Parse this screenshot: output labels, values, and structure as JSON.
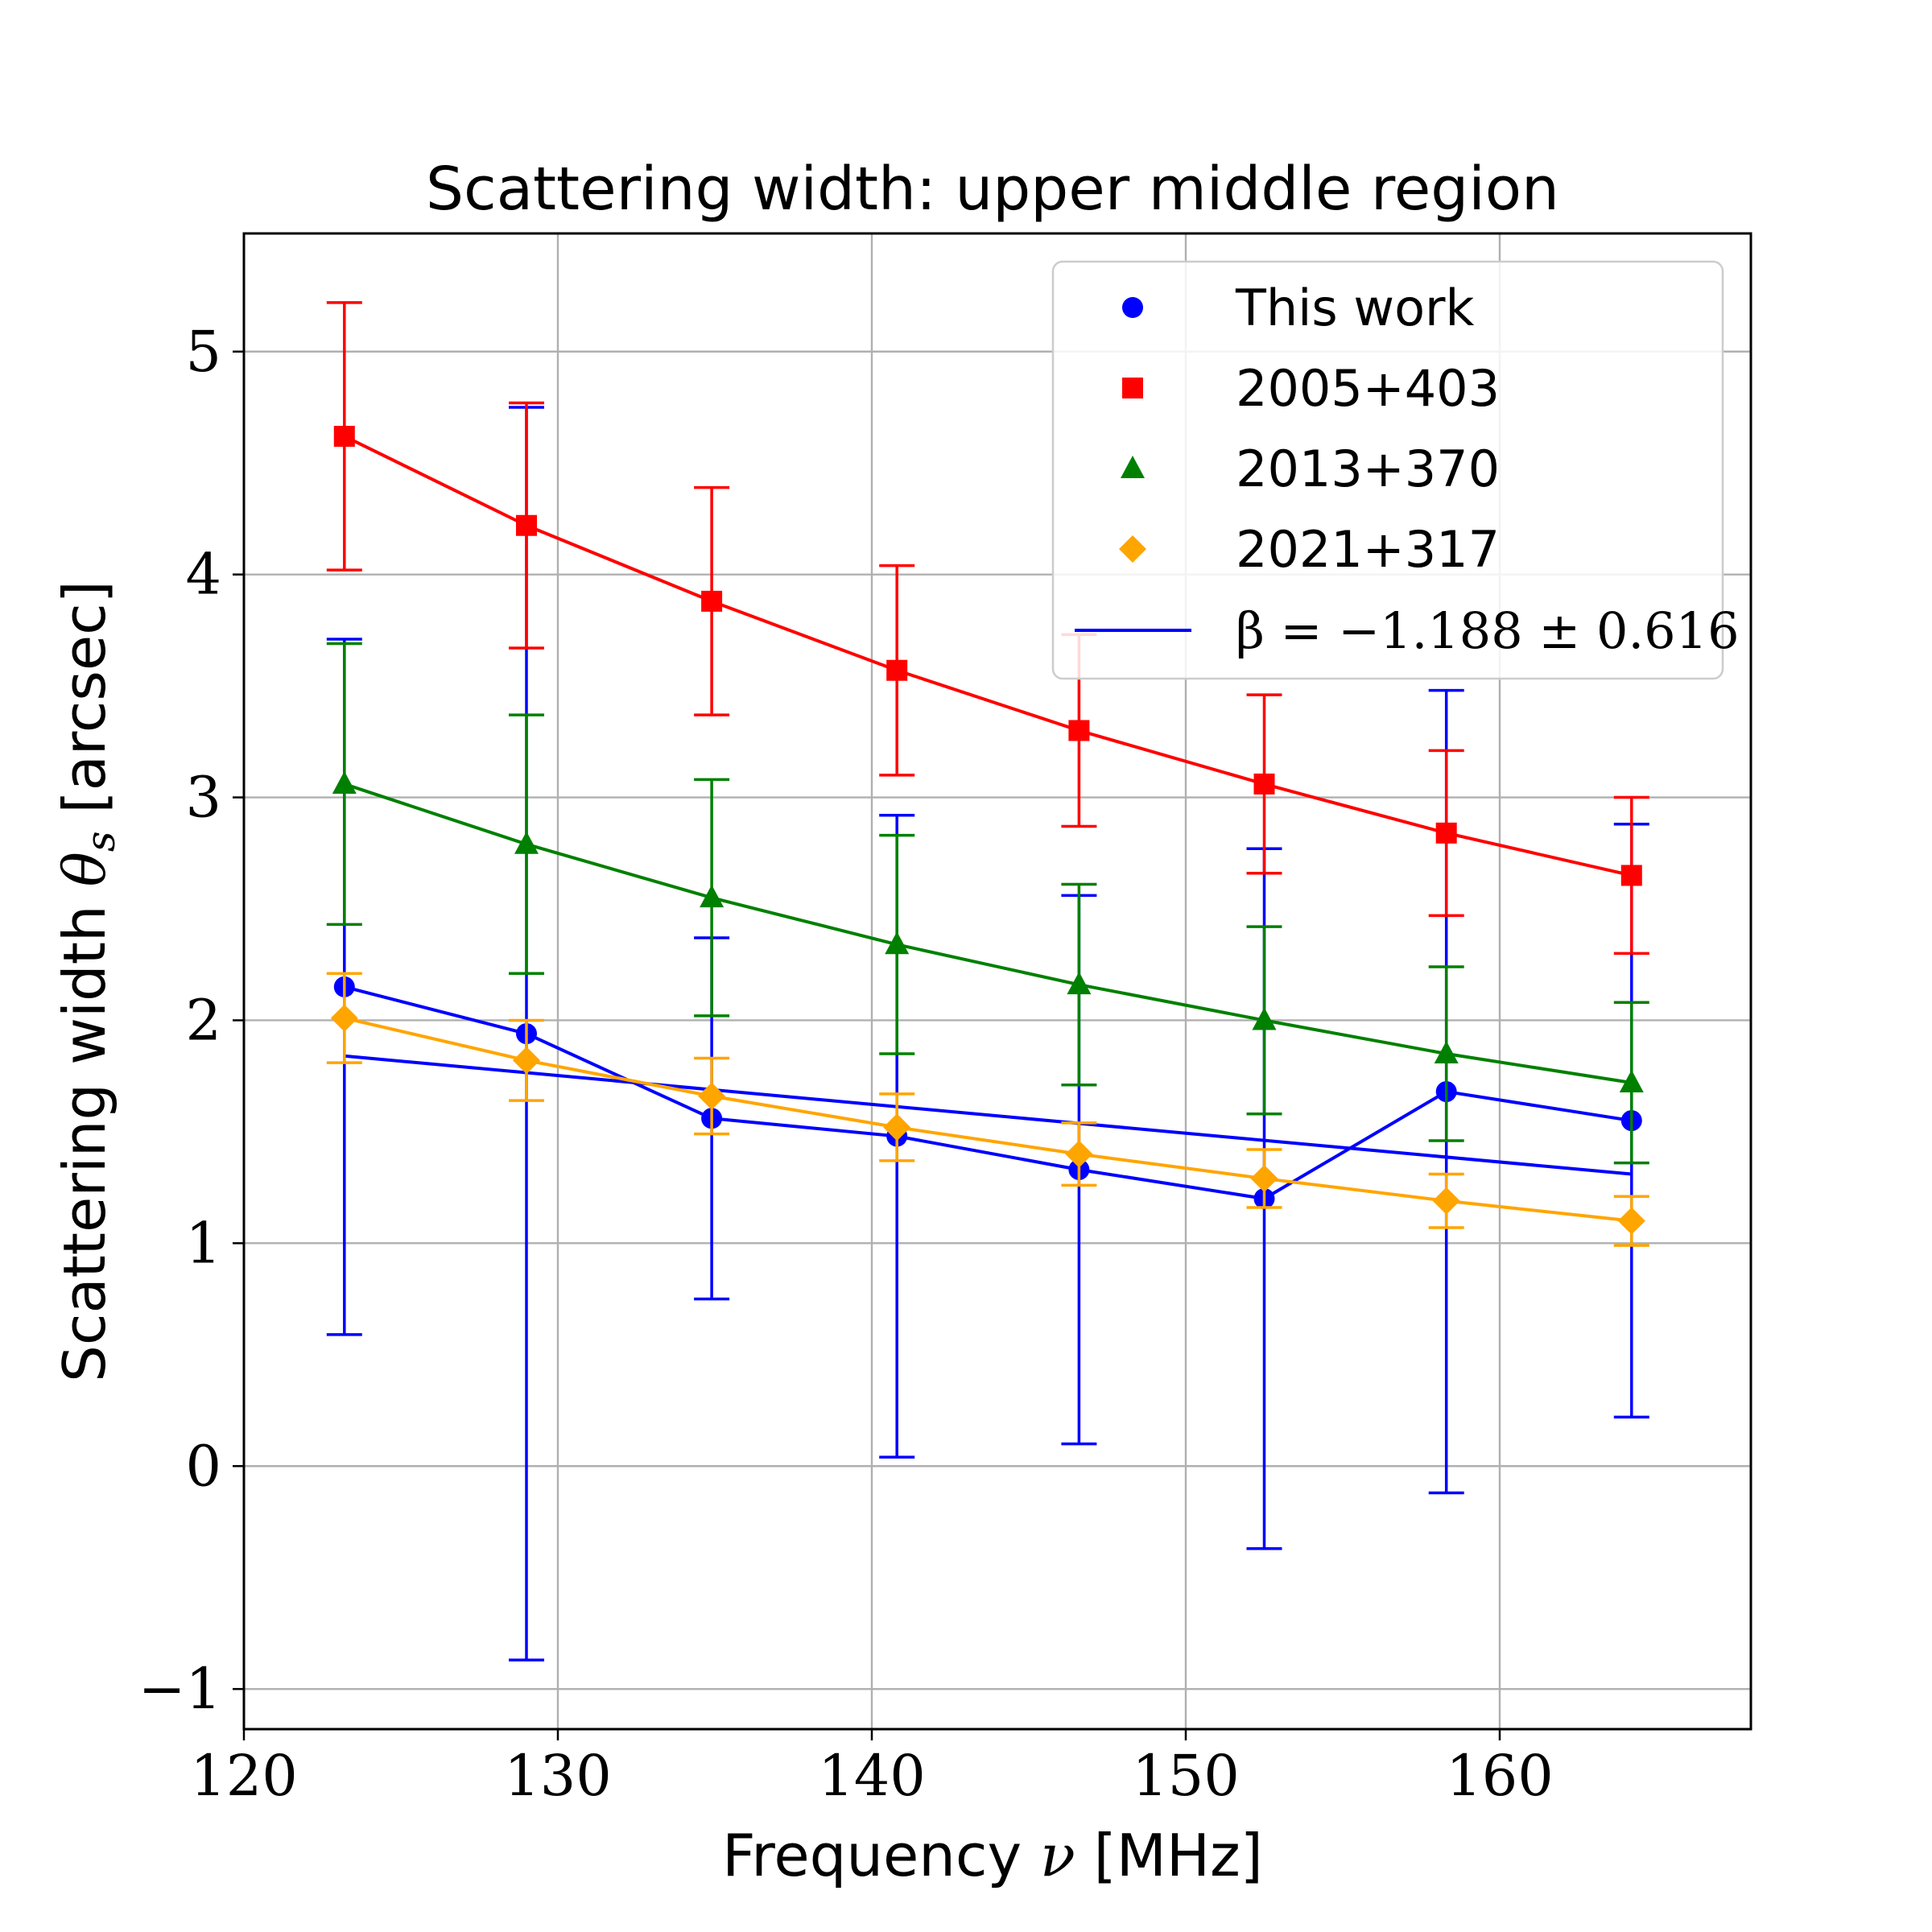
{
  "chart_data": {
    "type": "line",
    "title": "Scattering width: upper middle region",
    "xlabel_text": "Frequency",
    "xlabel_symbol": "ν",
    "xlabel_unit": "[MHz]",
    "ylabel_text": "Scattering width",
    "ylabel_symbol": "θ",
    "ylabel_subscript": "s",
    "ylabel_unit": "[arcsec]",
    "xlim": [
      120,
      168
    ],
    "ylim": [
      -1.18,
      5.53
    ],
    "xticks": [
      120,
      130,
      140,
      150,
      160
    ],
    "yticks": [
      -1,
      0,
      1,
      2,
      3,
      4,
      5
    ],
    "xtick_labels": [
      "120",
      "130",
      "140",
      "150",
      "160"
    ],
    "ytick_labels": [
      "−1",
      "0",
      "1",
      "2",
      "3",
      "4",
      "5"
    ],
    "grid": true,
    "legend_position": "top-right",
    "x": [
      123.2,
      129.0,
      134.9,
      140.8,
      146.6,
      152.5,
      158.3,
      164.2
    ],
    "series": [
      {
        "name": "This work",
        "marker": "circle",
        "color": "#0000ff",
        "values": [
          2.15,
          1.94,
          1.56,
          1.48,
          1.33,
          1.2,
          1.68,
          1.55
        ],
        "errors": [
          1.56,
          2.81,
          0.81,
          1.44,
          1.23,
          1.57,
          1.8,
          1.33
        ]
      },
      {
        "name": "2005+403",
        "marker": "square",
        "color": "#ff0000",
        "values": [
          4.62,
          4.22,
          3.88,
          3.57,
          3.3,
          3.06,
          2.84,
          2.65
        ],
        "errors": [
          0.6,
          0.55,
          0.51,
          0.47,
          0.43,
          0.4,
          0.37,
          0.35
        ]
      },
      {
        "name": "2013+370",
        "marker": "triangle",
        "color": "#008000",
        "values": [
          3.06,
          2.79,
          2.55,
          2.34,
          2.16,
          2.0,
          1.85,
          1.72
        ],
        "errors": [
          0.63,
          0.58,
          0.53,
          0.49,
          0.45,
          0.42,
          0.39,
          0.36
        ]
      },
      {
        "name": "2021+317",
        "marker": "diamond",
        "color": "#ffa500",
        "values": [
          2.01,
          1.82,
          1.66,
          1.52,
          1.4,
          1.29,
          1.19,
          1.1
        ],
        "errors": [
          0.2,
          0.18,
          0.17,
          0.15,
          0.14,
          0.13,
          0.12,
          0.11
        ]
      }
    ],
    "fit": {
      "name": "β = −1.188 ± 0.616",
      "color": "#0000ff",
      "x": [
        123.2,
        164.2
      ],
      "y": [
        1.84,
        1.31
      ]
    }
  }
}
